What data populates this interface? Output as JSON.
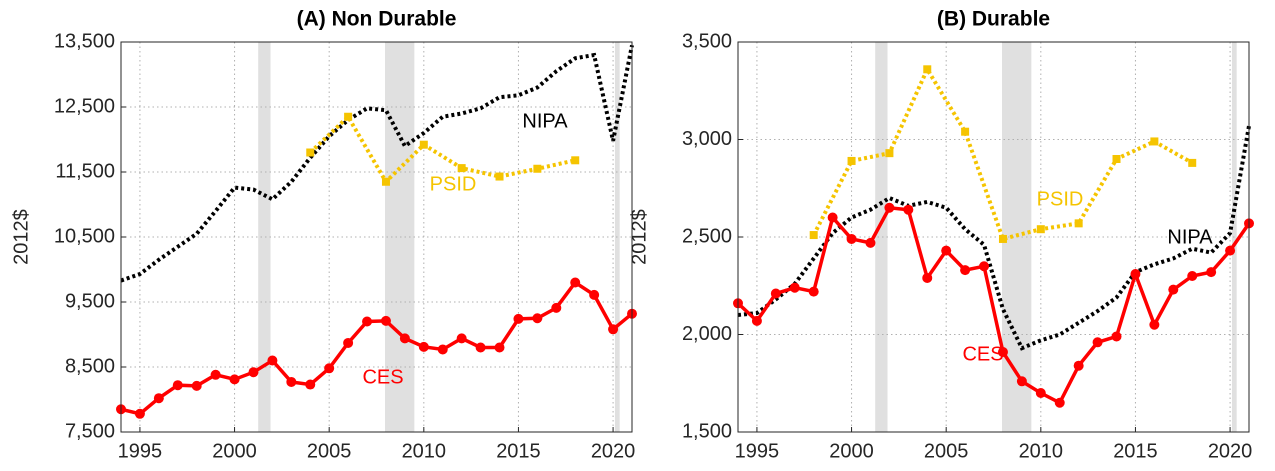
{
  "chart_data": [
    {
      "type": "line",
      "title": "(A) Non Durable",
      "y_label": "2012$",
      "xlim": [
        1994,
        2021
      ],
      "xticks": [
        1995,
        2000,
        2005,
        2010,
        2015,
        2020
      ],
      "ylim": [
        7500,
        13500
      ],
      "yticks": [
        {
          "value": 7500,
          "label": "7,500"
        },
        {
          "value": 8500,
          "label": "8,500"
        },
        {
          "value": 9500,
          "label": "9,500"
        },
        {
          "value": 10500,
          "label": "10,500"
        },
        {
          "value": 11500,
          "label": "11,500"
        },
        {
          "value": 12500,
          "label": "12,500"
        },
        {
          "value": 13500,
          "label": "13,500"
        }
      ],
      "grid": true,
      "shaded_periods": [
        [
          2001.25,
          2001.9
        ],
        [
          2007.95,
          2009.5
        ],
        [
          2020.1,
          2020.35
        ]
      ],
      "series": [
        {
          "name": "NIPA",
          "color": "#000000",
          "line_style": "dotted",
          "marker": "none",
          "x": [
            1994,
            1995,
            1996,
            1997,
            1998,
            1999,
            2000,
            2001,
            2002,
            2003,
            2004,
            2005,
            2006,
            2007,
            2008,
            2009,
            2010,
            2011,
            2012,
            2013,
            2014,
            2015,
            2016,
            2017,
            2018,
            2019,
            2020,
            2021
          ],
          "values": [
            9830,
            9930,
            10150,
            10350,
            10550,
            10900,
            11260,
            11230,
            11080,
            11350,
            11720,
            12050,
            12300,
            12480,
            12450,
            11900,
            12100,
            12350,
            12400,
            12480,
            12650,
            12680,
            12800,
            13050,
            13250,
            13300,
            11980,
            13450
          ]
        },
        {
          "name": "PSID",
          "color": "#f5c400",
          "line_style": "dotted",
          "marker": "square",
          "x": [
            2004,
            2006,
            2008,
            2010,
            2012,
            2014,
            2016,
            2018
          ],
          "values": [
            11800,
            12350,
            11350,
            11920,
            11560,
            11430,
            11550,
            11680
          ]
        },
        {
          "name": "CES",
          "color": "#ff0000",
          "line_style": "solid",
          "marker": "circle",
          "x": [
            1994,
            1995,
            1996,
            1997,
            1998,
            1999,
            2000,
            2001,
            2002,
            2003,
            2004,
            2005,
            2006,
            2007,
            2008,
            2009,
            2010,
            2011,
            2012,
            2013,
            2014,
            2015,
            2016,
            2017,
            2018,
            2019,
            2020,
            2021
          ],
          "values": [
            7850,
            7780,
            8020,
            8220,
            8210,
            8380,
            8310,
            8420,
            8600,
            8270,
            8230,
            8480,
            8870,
            9200,
            9210,
            8940,
            8810,
            8770,
            8940,
            8800,
            8800,
            9240,
            9250,
            9410,
            9800,
            9610,
            9080,
            9320
          ]
        }
      ]
    },
    {
      "type": "line",
      "title": "(B) Durable",
      "y_label": "2012$",
      "xlim": [
        1994,
        2021
      ],
      "xticks": [
        1995,
        2000,
        2005,
        2010,
        2015,
        2020
      ],
      "ylim": [
        1500,
        3500
      ],
      "yticks": [
        {
          "value": 1500,
          "label": "1,500"
        },
        {
          "value": 2000,
          "label": "2,000"
        },
        {
          "value": 2500,
          "label": "2,500"
        },
        {
          "value": 3000,
          "label": "3,000"
        },
        {
          "value": 3500,
          "label": "3,500"
        }
      ],
      "grid": true,
      "shaded_periods": [
        [
          2001.25,
          2001.9
        ],
        [
          2007.95,
          2009.5
        ],
        [
          2020.1,
          2020.35
        ]
      ],
      "series": [
        {
          "name": "NIPA",
          "color": "#000000",
          "line_style": "dotted",
          "marker": "none",
          "x": [
            1994,
            1995,
            1996,
            1997,
            1998,
            1999,
            2000,
            2001,
            2002,
            2003,
            2004,
            2005,
            2006,
            2007,
            2008,
            2009,
            2010,
            2011,
            2012,
            2013,
            2014,
            2015,
            2016,
            2017,
            2018,
            2019,
            2020,
            2021
          ],
          "values": [
            2100,
            2110,
            2180,
            2260,
            2390,
            2520,
            2600,
            2640,
            2700,
            2660,
            2680,
            2650,
            2540,
            2460,
            2130,
            1930,
            1970,
            2000,
            2060,
            2120,
            2190,
            2320,
            2360,
            2390,
            2440,
            2420,
            2520,
            3070
          ]
        },
        {
          "name": "PSID",
          "color": "#f5c400",
          "line_style": "dotted",
          "marker": "square",
          "x": [
            1998,
            2000,
            2002,
            2004,
            2006,
            2008,
            2010,
            2012,
            2014,
            2016,
            2018
          ],
          "values": [
            2510,
            2890,
            2930,
            3360,
            3040,
            2490,
            2540,
            2570,
            2900,
            2990,
            2880
          ]
        },
        {
          "name": "CES",
          "color": "#ff0000",
          "line_style": "solid",
          "marker": "circle",
          "x": [
            1994,
            1995,
            1996,
            1997,
            1998,
            1999,
            2000,
            2001,
            2002,
            2003,
            2004,
            2005,
            2006,
            2007,
            2008,
            2009,
            2010,
            2011,
            2012,
            2013,
            2014,
            2015,
            2016,
            2017,
            2018,
            2019,
            2020,
            2021
          ],
          "values": [
            2160,
            2070,
            2210,
            2240,
            2220,
            2600,
            2490,
            2470,
            2650,
            2640,
            2290,
            2430,
            2330,
            2350,
            1910,
            1760,
            1700,
            1650,
            1840,
            1960,
            1990,
            2310,
            2050,
            2230,
            2300,
            2320,
            2430,
            2570
          ]
        }
      ]
    }
  ]
}
